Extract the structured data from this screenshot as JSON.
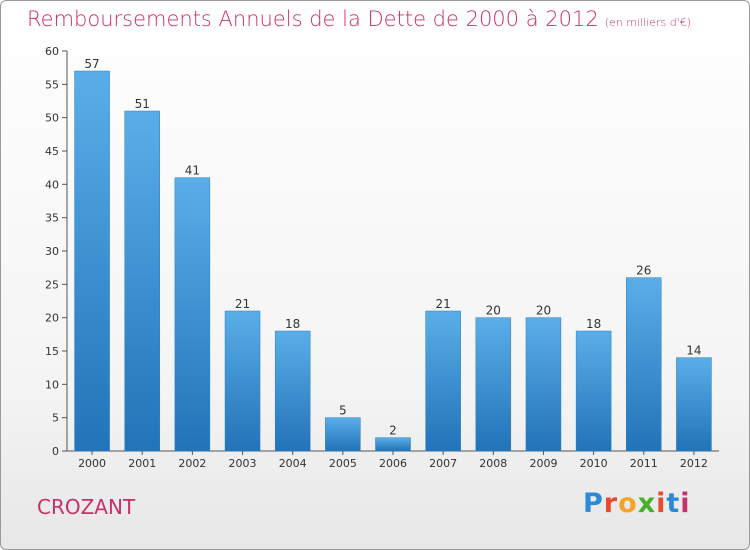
{
  "header": {
    "title": "Remboursements Annuels de la Dette de 2000 à 2012",
    "unit": "(en milliers d'€)"
  },
  "footer": {
    "commune": "CROZANT",
    "logo_letters": [
      "P",
      "r",
      "o",
      "x",
      "i",
      "t",
      "i"
    ],
    "logo_colors": [
      "#2a8ad8",
      "#e94b2d",
      "#f2a52a",
      "#46b02c",
      "#e94b2d",
      "#2a8ad8",
      "#c8306b"
    ]
  },
  "colors": {
    "title": "#c8306b",
    "bar_top": "#5aaee8",
    "bar_bottom": "#2273b8",
    "grid": "#d9d9d9"
  },
  "chart_data": {
    "type": "bar",
    "title": "Remboursements Annuels de la Dette de 2000 à 2012",
    "subtitle": "(en milliers d'€)",
    "categories": [
      "2000",
      "2001",
      "2002",
      "2003",
      "2004",
      "2005",
      "2006",
      "2007",
      "2008",
      "2009",
      "2010",
      "2011",
      "2012"
    ],
    "values": [
      57,
      51,
      41,
      21,
      18,
      5,
      2,
      21,
      20,
      20,
      18,
      26,
      14
    ],
    "ylim": [
      0,
      60
    ],
    "yticks": [
      0,
      5,
      10,
      15,
      20,
      25,
      30,
      35,
      40,
      45,
      50,
      55,
      60
    ],
    "xlabel": "",
    "ylabel": "",
    "grid": false,
    "data_labels": true
  }
}
